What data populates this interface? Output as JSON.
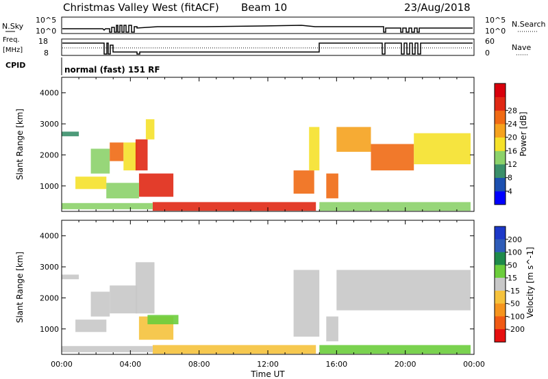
{
  "header": {
    "title": "Christmas Valley West (fitACF)",
    "beam": "Beam 10",
    "date": "23/Aug/2018"
  },
  "status_panels": {
    "nsky_label": "N.Sky",
    "nsearch_label": "N.Search",
    "freq_label_1": "Freq.",
    "freq_label_2": "[MHz]",
    "nave_label": "Nave",
    "cpid_label": "CPID",
    "cpid_value": "normal (fast) 151 RF",
    "nsky_ticks": [
      "10^5",
      "10^0"
    ],
    "nsearch_ticks": [
      "10^5",
      "10^0"
    ],
    "freq_ticks": [
      "18",
      "8"
    ],
    "nave_ticks": [
      "60",
      "0"
    ]
  },
  "chart_data": [
    {
      "type": "heatmap",
      "title": "",
      "xlabel": "Time UT",
      "ylabel": "Slant Range [km]",
      "xlim": [
        0,
        24
      ],
      "ylim": [
        180,
        4500
      ],
      "x_ticks": [
        "00:00",
        "04:00",
        "08:00",
        "12:00",
        "16:00",
        "20:00",
        "00:00"
      ],
      "y_ticks": [
        "1000",
        "2000",
        "3000",
        "4000"
      ],
      "colorbar": {
        "label": "Power [dB]",
        "ticks": [
          "4",
          "8",
          "12",
          "16",
          "20",
          "24",
          "28"
        ],
        "range": [
          0,
          30
        ],
        "colors": [
          "#0000ff",
          "#1c50b0",
          "#3a8f6a",
          "#8cd26a",
          "#f5e12a",
          "#f5a21e",
          "#f06a14",
          "#e02814",
          "#d8000c"
        ]
      },
      "regions": [
        {
          "t0": 0.0,
          "t1": 1.0,
          "r0": 2600,
          "r1": 2750,
          "value": 8
        },
        {
          "t0": 0.8,
          "t1": 2.6,
          "r0": 900,
          "r1": 1300,
          "value": 16
        },
        {
          "t0": 1.7,
          "t1": 2.8,
          "r0": 1400,
          "r1": 2200,
          "value": 10
        },
        {
          "t0": 2.8,
          "t1": 3.6,
          "r0": 1800,
          "r1": 2400,
          "value": 22
        },
        {
          "t0": 3.6,
          "t1": 4.4,
          "r0": 1500,
          "r1": 2400,
          "value": 14
        },
        {
          "t0": 4.3,
          "t1": 5.0,
          "r0": 1500,
          "r1": 2500,
          "value": 26
        },
        {
          "t0": 4.9,
          "t1": 5.4,
          "r0": 2500,
          "r1": 3150,
          "value": 14
        },
        {
          "t0": 4.5,
          "t1": 6.5,
          "r0": 650,
          "r1": 1400,
          "value": 26
        },
        {
          "t0": 2.6,
          "t1": 4.5,
          "r0": 600,
          "r1": 1100,
          "value": 12
        },
        {
          "t0": 5.3,
          "t1": 14.8,
          "r0": 200,
          "r1": 480,
          "value": 24
        },
        {
          "t0": 0.0,
          "t1": 5.3,
          "r0": 250,
          "r1": 450,
          "value": 10
        },
        {
          "t0": 13.5,
          "t1": 14.7,
          "r0": 750,
          "r1": 1500,
          "value": 22
        },
        {
          "t0": 14.4,
          "t1": 15.0,
          "r0": 1500,
          "r1": 2900,
          "value": 14
        },
        {
          "t0": 15.4,
          "t1": 16.1,
          "r0": 600,
          "r1": 1400,
          "value": 22
        },
        {
          "t0": 16.0,
          "t1": 18.0,
          "r0": 2100,
          "r1": 2900,
          "value": 18
        },
        {
          "t0": 18.0,
          "t1": 20.5,
          "r0": 1500,
          "r1": 2350,
          "value": 22
        },
        {
          "t0": 20.5,
          "t1": 23.8,
          "r0": 1700,
          "r1": 2700,
          "value": 16
        },
        {
          "t0": 15.0,
          "t1": 23.8,
          "r0": 200,
          "r1": 480,
          "value": 12
        }
      ]
    },
    {
      "type": "heatmap",
      "title": "",
      "xlabel": "Time UT",
      "ylabel": "Slant Range [km]",
      "xlim": [
        0,
        24
      ],
      "ylim": [
        180,
        4500
      ],
      "x_ticks": [
        "00:00",
        "04:00",
        "08:00",
        "12:00",
        "16:00",
        "20:00",
        "00:00"
      ],
      "y_ticks": [
        "1000",
        "2000",
        "3000",
        "4000"
      ],
      "colorbar": {
        "label": "Velocity [m s^-1]",
        "ticks": [
          "200",
          "100",
          "50",
          "15",
          "-15",
          "-50",
          "-100",
          "-200"
        ],
        "range": [
          -250,
          250
        ],
        "colors": [
          "#1c38c8",
          "#2e5cb8",
          "#1e8a4a",
          "#6ccd3c",
          "#c8c8c8",
          "#f5c23c",
          "#f5941e",
          "#f05a14",
          "#e60f0f"
        ]
      },
      "regions": [
        {
          "t0": 0.0,
          "t1": 1.0,
          "r0": 2600,
          "r1": 2750,
          "value": 0
        },
        {
          "t0": 0.8,
          "t1": 2.6,
          "r0": 900,
          "r1": 1300,
          "value": 0
        },
        {
          "t0": 1.7,
          "t1": 2.8,
          "r0": 1400,
          "r1": 2200,
          "value": 0
        },
        {
          "t0": 2.8,
          "t1": 4.4,
          "r0": 1500,
          "r1": 2400,
          "value": 0
        },
        {
          "t0": 4.3,
          "t1": 5.4,
          "r0": 1500,
          "r1": 3150,
          "value": 0
        },
        {
          "t0": 4.5,
          "t1": 6.5,
          "r0": 650,
          "r1": 1400,
          "value": -60
        },
        {
          "t0": 5.0,
          "t1": 6.8,
          "r0": 1150,
          "r1": 1450,
          "value": 30
        },
        {
          "t0": 5.3,
          "t1": 14.8,
          "r0": 200,
          "r1": 480,
          "value": -40
        },
        {
          "t0": 0.0,
          "t1": 5.3,
          "r0": 250,
          "r1": 450,
          "value": 25
        },
        {
          "t0": 13.5,
          "t1": 15.0,
          "r0": 750,
          "r1": 2900,
          "value": 0
        },
        {
          "t0": 15.4,
          "t1": 16.1,
          "r0": 600,
          "r1": 1400,
          "value": 0
        },
        {
          "t0": 16.0,
          "t1": 23.8,
          "r0": 1600,
          "r1": 2900,
          "value": 0
        },
        {
          "t0": 15.0,
          "t1": 23.8,
          "r0": 200,
          "r1": 480,
          "value": 30
        }
      ]
    }
  ]
}
